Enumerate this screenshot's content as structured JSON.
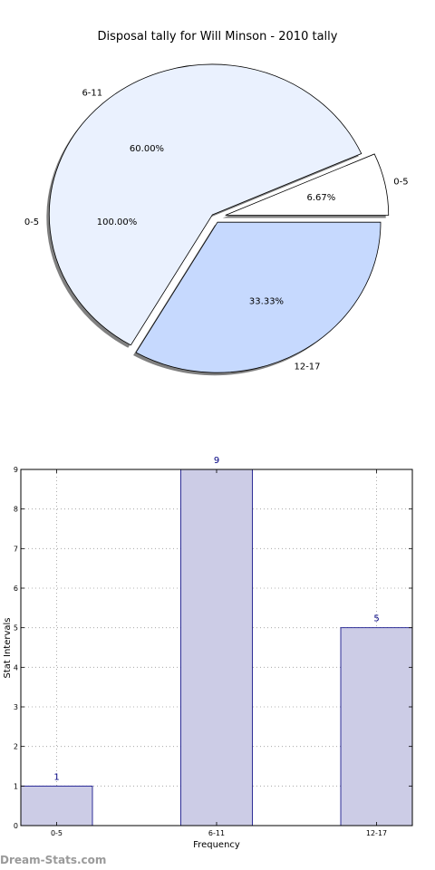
{
  "watermark": "Dream-Stats.com",
  "chart_data": [
    {
      "type": "pie",
      "title": "Disposal tally for Will Minson - 2010 tally",
      "slices": [
        {
          "label": "0-5",
          "value": 6.67,
          "pct_label": "6.67%",
          "color": "#ffffff",
          "exploded": true
        },
        {
          "label": "6-11",
          "value": 60.0,
          "pct_label": "60.00%",
          "color": "#eaf1fe",
          "exploded": false
        },
        {
          "label": "12-17",
          "value": 33.33,
          "pct_label": "33.33%",
          "color": "#c6d9fe",
          "exploded": false
        }
      ],
      "extra_labels": [
        {
          "text": "0-5"
        },
        {
          "text": "100.00%"
        }
      ],
      "shadow": true
    },
    {
      "type": "bar",
      "categories": [
        "0-5",
        "6-11",
        "12-17"
      ],
      "values": [
        1,
        9,
        5
      ],
      "value_labels": [
        "1",
        "9",
        "5"
      ],
      "xlabel": "Frequency",
      "ylabel": "Stat Intervals",
      "ylim": [
        0,
        9
      ],
      "yticks": [
        "0",
        "1",
        "2",
        "3",
        "4",
        "5",
        "6",
        "7",
        "8",
        "9"
      ],
      "grid": true,
      "bar_color": "#cccce6",
      "bar_edge": "#000080",
      "label_color": "#000080"
    }
  ]
}
